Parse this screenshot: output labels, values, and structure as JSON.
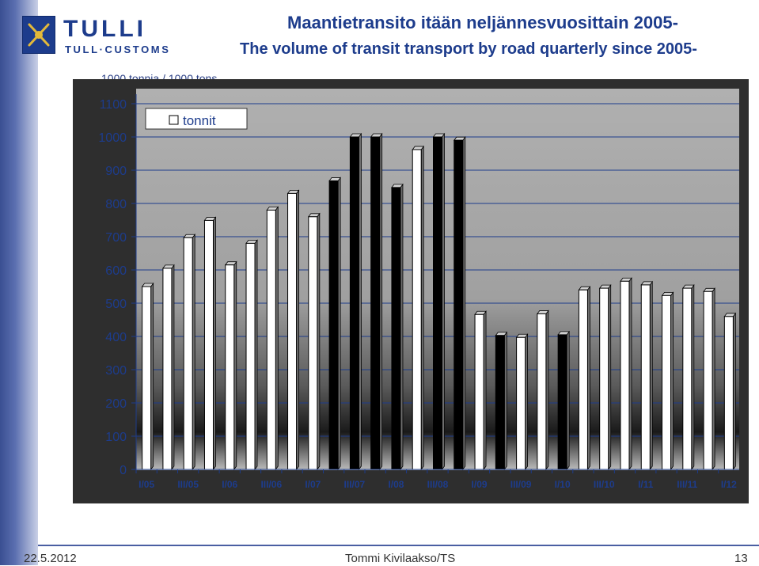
{
  "header": {
    "logo_word": "TULLI",
    "logo_sub": "TULL·CUSTOMS",
    "title_fi": "Maantietransito itään neljännesvuosittain 2005-",
    "title_en": "The volume of transit transport by road quarterly since 2005-"
  },
  "colors": {
    "brand_blue": "#1d3c8c",
    "bar_white": "#ffffff",
    "bar_black": "#000000",
    "plot_gray": "#a8a8a8",
    "frame_dark": "#333333"
  },
  "chart_data": {
    "type": "bar",
    "ylabel": "1000 tonnia / 1000 tons",
    "ylim": [
      0,
      1100
    ],
    "yticks": [
      0,
      100,
      200,
      300,
      400,
      500,
      600,
      700,
      800,
      900,
      1000,
      1100
    ],
    "legend": {
      "label": "tonnit",
      "position": "top-left"
    },
    "grid": true,
    "categories": [
      "I/05",
      "II/05",
      "III/05",
      "IV/05",
      "I/06",
      "II/06",
      "III/06",
      "IV/06",
      "I/07",
      "II/07",
      "III/07",
      "IV/07",
      "I/08",
      "II/08",
      "III/08",
      "IV/08",
      "I/09",
      "II/09",
      "III/09",
      "IV/09",
      "I/10",
      "II/10",
      "III/10",
      "IV/10",
      "I/11",
      "II/11",
      "III/11",
      "IV/11",
      "I/12"
    ],
    "tick_labels": [
      "I/05",
      "III/05",
      "I/06",
      "III/06",
      "I/07",
      "III/07",
      "I/08",
      "III/08",
      "I/09",
      "III/09",
      "I/10",
      "III/10",
      "I/11",
      "III/11",
      "I/12"
    ],
    "series": [
      {
        "name": "tonnit",
        "values": [
          550,
          605,
          697,
          749,
          615,
          680,
          780,
          830,
          760,
          868,
          1000,
          1000,
          848,
          962,
          1000,
          990,
          466,
          403,
          397,
          468,
          405,
          540,
          545,
          566,
          555,
          523,
          545,
          535,
          460
        ]
      }
    ],
    "bar_fill": [
      "white",
      "white",
      "white",
      "white",
      "white",
      "white",
      "white",
      "white",
      "white",
      "black",
      "black",
      "black",
      "black",
      "white",
      "black",
      "black",
      "white",
      "black",
      "white",
      "white",
      "black",
      "white",
      "white",
      "white",
      "white",
      "white",
      "white",
      "white",
      "white"
    ]
  },
  "footer": {
    "date": "22.5.2012",
    "author": "Tommi Kivilaakso/TS",
    "page": "13"
  }
}
